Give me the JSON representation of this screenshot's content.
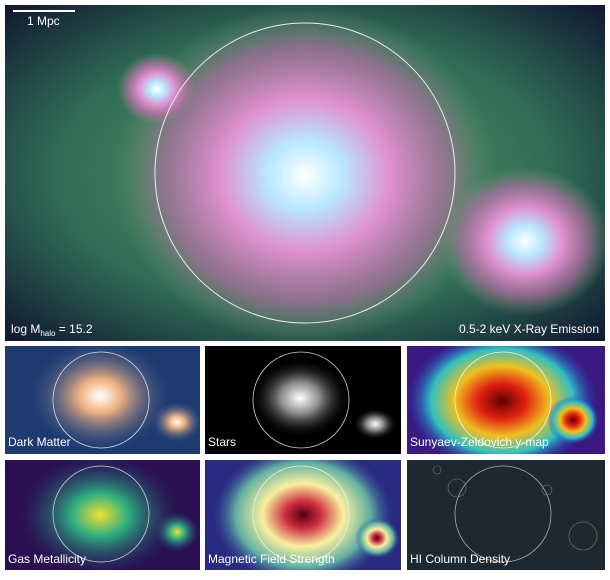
{
  "main": {
    "scale_bar": "1 Mpc",
    "mass_label": {
      "prefix": "log M",
      "subscript": "halo",
      "suffix": " = 15.2"
    },
    "band_label": "0.5-2 keV X-Ray Emission"
  },
  "panels": [
    {
      "label": "Dark Matter"
    },
    {
      "label": "Stars"
    },
    {
      "label": "Sunyaev-Zeldovich y-map"
    },
    {
      "label": "Gas Metallicity"
    },
    {
      "label": "Magnetic Field Strength"
    },
    {
      "label": "HI Column Density"
    }
  ]
}
